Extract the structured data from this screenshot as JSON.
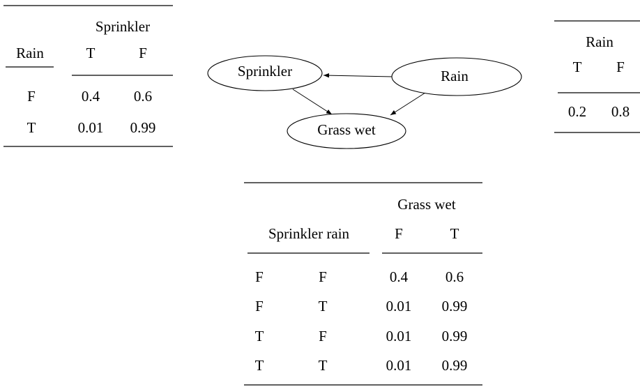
{
  "sprinkler_table": {
    "column_group": "Sprinkler",
    "row_header": "Rain",
    "columns": [
      "T",
      "F"
    ],
    "rows": [
      [
        "F",
        0.4,
        0.6
      ],
      [
        "T",
        0.01,
        0.99
      ]
    ]
  },
  "rain_table": {
    "column_group": "Rain",
    "columns": [
      "T",
      "F"
    ],
    "rows": [
      [
        0.2,
        0.8
      ]
    ]
  },
  "nodes": [
    {
      "label": "Sprinkler"
    },
    {
      "label": "Rain"
    },
    {
      "label": "Grass wet"
    }
  ],
  "grass_table": {
    "column_group": "Grass wet",
    "row_header": "Sprinkler rain",
    "columns": [
      "F",
      "T"
    ],
    "rows": [
      [
        "F",
        "F",
        0.4,
        0.6
      ],
      [
        "F",
        "T",
        0.01,
        0.99
      ],
      [
        "T",
        "F",
        0.01,
        0.99
      ],
      [
        "T",
        "T",
        0.01,
        0.99
      ]
    ]
  }
}
